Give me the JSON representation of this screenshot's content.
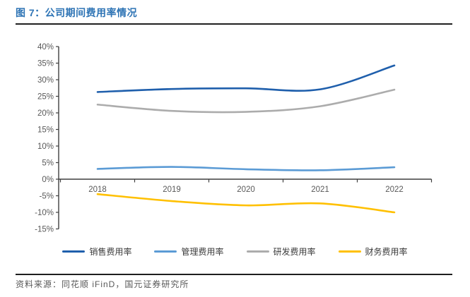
{
  "header": {
    "title": "图 7：公司期间费用率情况"
  },
  "footer": {
    "source": "资料来源：同花顺 iFinD，国元证券研究所"
  },
  "colors": {
    "title": "#2E74B5",
    "rule": "#1F1F1F",
    "axis": "#3F3F3F",
    "tick_label": "#595959"
  },
  "chart_data": {
    "type": "line",
    "title": "公司期间费用率情况",
    "categories": [
      "2018",
      "2019",
      "2020",
      "2021",
      "2022"
    ],
    "series": [
      {
        "key": "sales",
        "name": "销售费用率",
        "color": "#1F5FAC",
        "values": [
          26.3,
          27.2,
          27.4,
          27.1,
          34.3
        ]
      },
      {
        "key": "management",
        "name": "管理费用率",
        "color": "#5B9BD5",
        "values": [
          3.1,
          3.7,
          3.0,
          2.7,
          3.6
        ]
      },
      {
        "key": "rd",
        "name": "研发费用率",
        "color": "#ACACAC",
        "values": [
          22.5,
          20.6,
          20.3,
          22.0,
          27.0
        ]
      },
      {
        "key": "finance",
        "name": "财务费用率",
        "color": "#FFC000",
        "values": [
          -4.5,
          -6.6,
          -7.9,
          -7.3,
          -10.0
        ]
      }
    ],
    "ylim": [
      -15,
      40
    ],
    "ytick_step": 5,
    "y_tick_labels": [
      "40%",
      "35%",
      "30%",
      "25%",
      "20%",
      "15%",
      "10%",
      "5%",
      "0%",
      "-5%",
      "-10%",
      "-15%"
    ],
    "xlabel": "",
    "ylabel": "",
    "grid": false,
    "legend_position": "bottom",
    "line_style": "smooth"
  }
}
